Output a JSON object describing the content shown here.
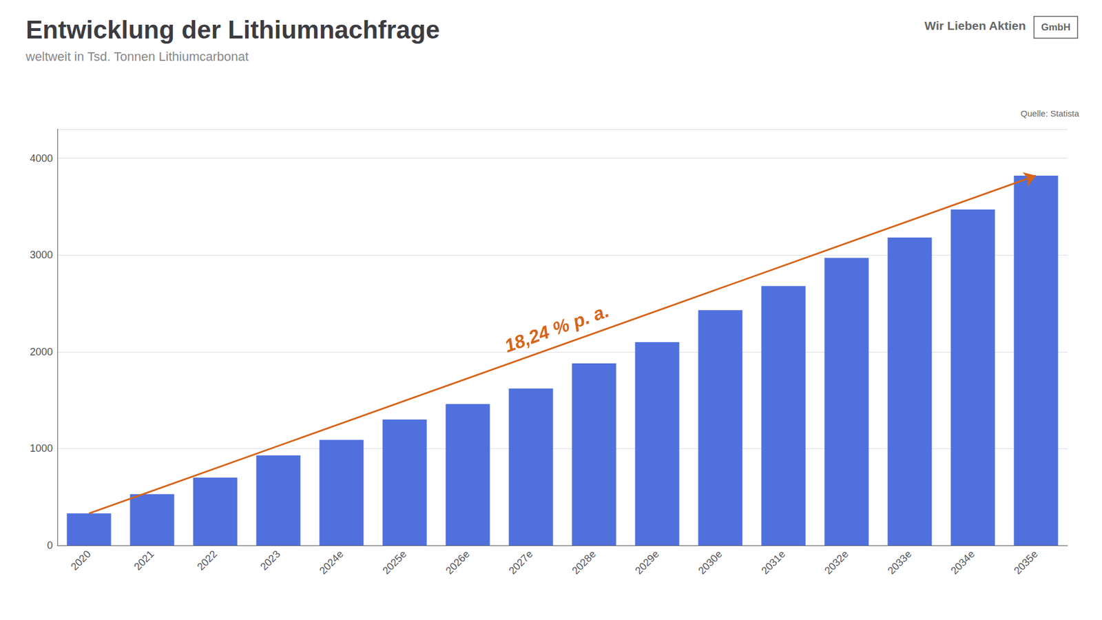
{
  "chart_data": {
    "type": "bar",
    "title": "Entwicklung der Lithiumnachfrage",
    "subtitle": "weltweit in Tsd. Tonnen Lithiumcarbonat",
    "source": "Quelle: Statista",
    "brand": "Wir Lieben Aktien",
    "brand_box": "GmbH",
    "annotations": [
      {
        "text": "18,24 % p. a.",
        "color": "#d4651a"
      }
    ],
    "categories": [
      "2020",
      "2021",
      "2022",
      "2023",
      "2024e",
      "2025e",
      "2026e",
      "2027e",
      "2028e",
      "2029e",
      "2030e",
      "2031e",
      "2032e",
      "2033e",
      "2034e",
      "2035e"
    ],
    "values": [
      330,
      530,
      700,
      930,
      1090,
      1300,
      1460,
      1620,
      1880,
      2100,
      2430,
      2680,
      2970,
      3180,
      3470,
      3820
    ],
    "ylim": [
      0,
      4300
    ],
    "yticks": [
      0,
      1000,
      2000,
      3000,
      4000
    ],
    "grid": true
  }
}
